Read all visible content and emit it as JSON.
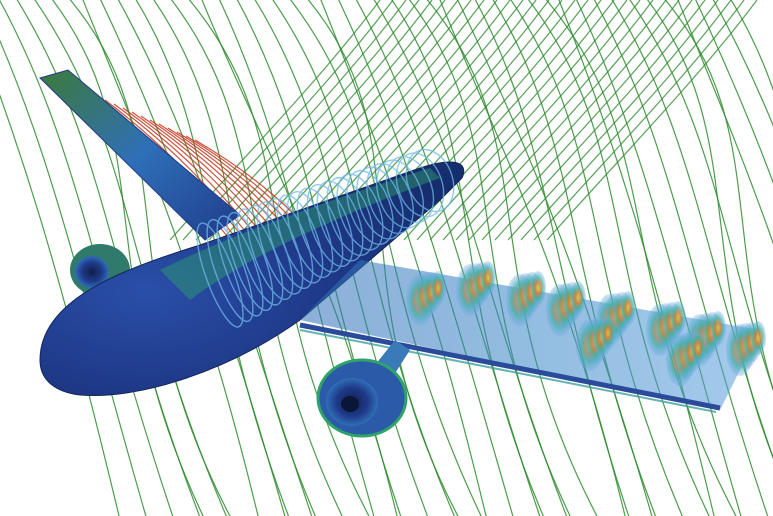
{
  "image": {
    "subject": "cfd-aircraft-streamlines",
    "background_color": "#ffffff",
    "colors": {
      "streamline_far": "#2e8b2e",
      "streamline_near": "#c8321a",
      "fuselage_dark": "#1f3a8a",
      "fuselage_mid": "#2f6fb8",
      "surface_highlight": "#2fa36a",
      "vortex_core": "#e8d23a",
      "vortex_outer": "#6fa8e8",
      "wing_edge": "#2a4a9a"
    }
  }
}
